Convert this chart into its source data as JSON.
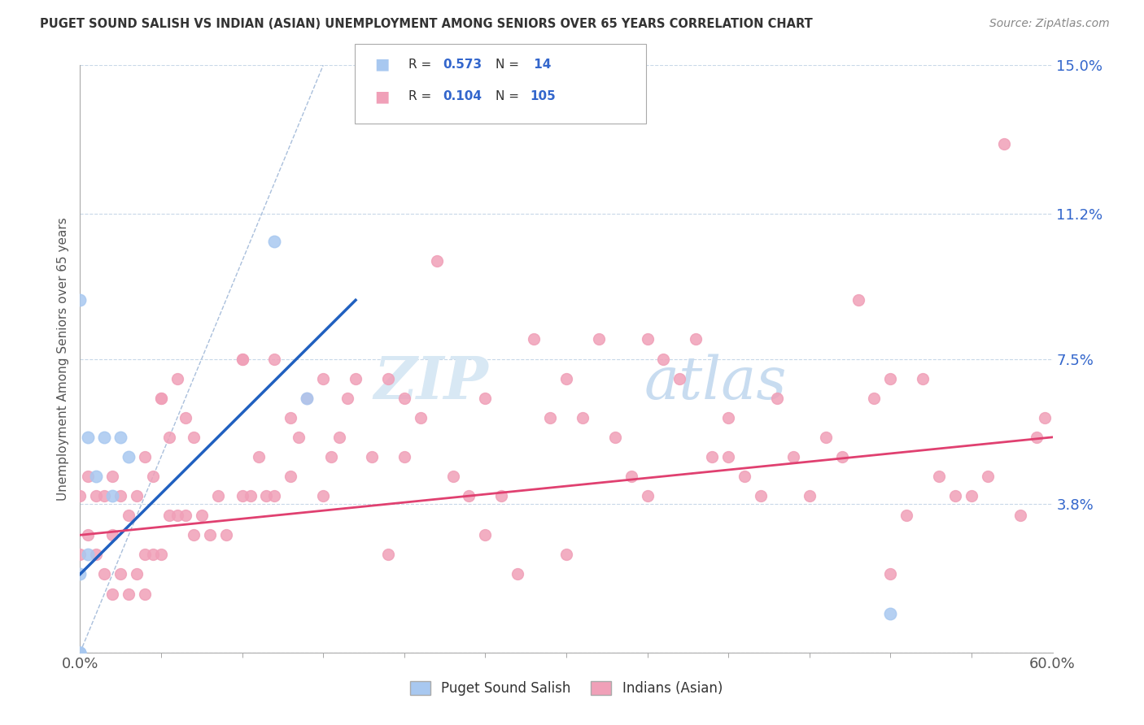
{
  "title": "PUGET SOUND SALISH VS INDIAN (ASIAN) UNEMPLOYMENT AMONG SENIORS OVER 65 YEARS CORRELATION CHART",
  "source": "Source: ZipAtlas.com",
  "ylabel": "Unemployment Among Seniors over 65 years",
  "xlim": [
    0.0,
    0.6
  ],
  "ylim": [
    0.0,
    0.15
  ],
  "yticks": [
    0.0,
    0.038,
    0.075,
    0.112,
    0.15
  ],
  "ytick_labels": [
    "",
    "3.8%",
    "7.5%",
    "11.2%",
    "15.0%"
  ],
  "color_salish": "#A8C8F0",
  "color_indian": "#F0A0B8",
  "color_line_salish": "#2060C0",
  "color_line_indian": "#E04070",
  "color_diag": "#A0B8D8",
  "background_color": "#FFFFFF",
  "salish_x": [
    0.0,
    0.0,
    0.0,
    0.0,
    0.0,
    0.005,
    0.005,
    0.01,
    0.015,
    0.02,
    0.025,
    0.03,
    0.12,
    0.14,
    0.5
  ],
  "salish_y": [
    0.09,
    0.02,
    0.0,
    0.0,
    0.0,
    0.025,
    0.055,
    0.045,
    0.055,
    0.04,
    0.055,
    0.05,
    0.105,
    0.065,
    0.01
  ],
  "indian_x": [
    0.0,
    0.0,
    0.005,
    0.005,
    0.01,
    0.01,
    0.015,
    0.015,
    0.02,
    0.02,
    0.02,
    0.025,
    0.025,
    0.03,
    0.03,
    0.035,
    0.035,
    0.04,
    0.04,
    0.04,
    0.045,
    0.045,
    0.05,
    0.05,
    0.055,
    0.055,
    0.06,
    0.06,
    0.065,
    0.065,
    0.07,
    0.07,
    0.075,
    0.08,
    0.085,
    0.09,
    0.1,
    0.1,
    0.105,
    0.11,
    0.115,
    0.12,
    0.12,
    0.13,
    0.13,
    0.135,
    0.14,
    0.15,
    0.155,
    0.16,
    0.165,
    0.17,
    0.18,
    0.19,
    0.19,
    0.2,
    0.21,
    0.22,
    0.23,
    0.24,
    0.25,
    0.26,
    0.27,
    0.28,
    0.29,
    0.3,
    0.31,
    0.32,
    0.33,
    0.34,
    0.35,
    0.36,
    0.37,
    0.38,
    0.39,
    0.4,
    0.41,
    0.42,
    0.43,
    0.44,
    0.45,
    0.46,
    0.47,
    0.48,
    0.49,
    0.5,
    0.51,
    0.52,
    0.53,
    0.54,
    0.55,
    0.56,
    0.57,
    0.58,
    0.59,
    0.595,
    0.3,
    0.35,
    0.4,
    0.5,
    0.25,
    0.2,
    0.15,
    0.1,
    0.05
  ],
  "indian_y": [
    0.025,
    0.04,
    0.03,
    0.045,
    0.025,
    0.04,
    0.02,
    0.04,
    0.015,
    0.03,
    0.045,
    0.02,
    0.04,
    0.015,
    0.035,
    0.02,
    0.04,
    0.015,
    0.025,
    0.05,
    0.025,
    0.045,
    0.025,
    0.065,
    0.035,
    0.055,
    0.035,
    0.07,
    0.035,
    0.06,
    0.03,
    0.055,
    0.035,
    0.03,
    0.04,
    0.03,
    0.04,
    0.075,
    0.04,
    0.05,
    0.04,
    0.04,
    0.075,
    0.045,
    0.06,
    0.055,
    0.065,
    0.04,
    0.05,
    0.055,
    0.065,
    0.07,
    0.05,
    0.025,
    0.07,
    0.065,
    0.06,
    0.1,
    0.045,
    0.04,
    0.065,
    0.04,
    0.02,
    0.08,
    0.06,
    0.025,
    0.06,
    0.08,
    0.055,
    0.045,
    0.04,
    0.075,
    0.07,
    0.08,
    0.05,
    0.05,
    0.045,
    0.04,
    0.065,
    0.05,
    0.04,
    0.055,
    0.05,
    0.09,
    0.065,
    0.07,
    0.035,
    0.07,
    0.045,
    0.04,
    0.04,
    0.045,
    0.13,
    0.035,
    0.055,
    0.06,
    0.07,
    0.08,
    0.06,
    0.02,
    0.03,
    0.05,
    0.07,
    0.075,
    0.065
  ]
}
